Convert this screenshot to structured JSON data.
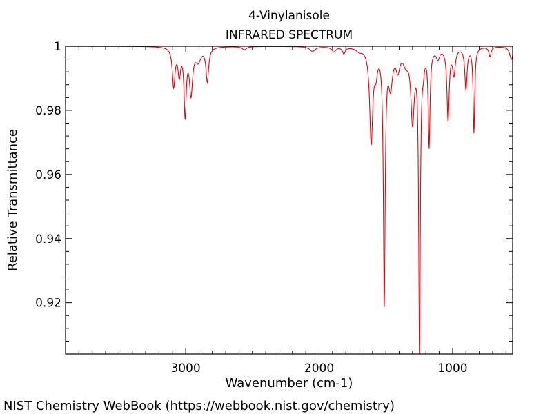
{
  "chart_data": {
    "type": "line",
    "title": "4-Vinylanisole",
    "subtitle": "INFRARED SPECTRUM",
    "xlabel": "Wavenumber (cm-1)",
    "ylabel": "Relative Transmittance",
    "xlim": [
      3900,
      550
    ],
    "ylim": [
      0.904,
      1.0
    ],
    "x_reversed": true,
    "grid": false,
    "x_ticks": [
      3000,
      2000,
      1000
    ],
    "x_tick_labels": [
      "3000",
      "2000",
      "1000"
    ],
    "y_ticks": [
      1.0,
      0.98,
      0.96,
      0.94,
      0.92
    ],
    "y_tick_labels": [
      "1",
      "0.98",
      "0.96",
      "0.94",
      "0.92"
    ],
    "series": [
      {
        "color": "#e8000b",
        "baseline": 1.0,
        "bands": [
          {
            "center": 3090,
            "depth": 0.012,
            "width": 12
          },
          {
            "center": 3048,
            "depth": 0.008,
            "width": 12
          },
          {
            "center": 3004,
            "depth": 0.0205,
            "width": 10
          },
          {
            "center": 2960,
            "depth": 0.014,
            "width": 14
          },
          {
            "center": 2906,
            "depth": 0.004,
            "width": 25
          },
          {
            "center": 2838,
            "depth": 0.0105,
            "width": 12
          },
          {
            "center": 2560,
            "depth": 0.001,
            "width": 20
          },
          {
            "center": 2050,
            "depth": 0.0015,
            "width": 25
          },
          {
            "center": 1890,
            "depth": 0.0015,
            "width": 18
          },
          {
            "center": 1815,
            "depth": 0.002,
            "width": 12
          },
          {
            "center": 1700,
            "depth": 0.001,
            "width": 25
          },
          {
            "center": 1610,
            "depth": 0.029,
            "width": 14
          },
          {
            "center": 1575,
            "depth": 0.006,
            "width": 14
          },
          {
            "center": 1512,
            "depth": 0.0785,
            "width": 8
          },
          {
            "center": 1465,
            "depth": 0.011,
            "width": 18
          },
          {
            "center": 1410,
            "depth": 0.006,
            "width": 18
          },
          {
            "center": 1350,
            "depth": 0.004,
            "width": 25
          },
          {
            "center": 1300,
            "depth": 0.022,
            "width": 15
          },
          {
            "center": 1248,
            "depth": 0.0965,
            "width": 7
          },
          {
            "center": 1220,
            "depth": 0.004,
            "width": 10
          },
          {
            "center": 1176,
            "depth": 0.03,
            "width": 8
          },
          {
            "center": 1110,
            "depth": 0.003,
            "width": 15
          },
          {
            "center": 1034,
            "depth": 0.0225,
            "width": 10
          },
          {
            "center": 990,
            "depth": 0.008,
            "width": 12
          },
          {
            "center": 900,
            "depth": 0.013,
            "width": 10
          },
          {
            "center": 840,
            "depth": 0.0265,
            "width": 7
          },
          {
            "center": 720,
            "depth": 0.003,
            "width": 10
          },
          {
            "center": 560,
            "depth": 0.004,
            "width": 15
          }
        ]
      }
    ]
  },
  "footer": {
    "credit": "NIST Chemistry WebBook (https://webbook.nist.gov/chemistry)"
  }
}
